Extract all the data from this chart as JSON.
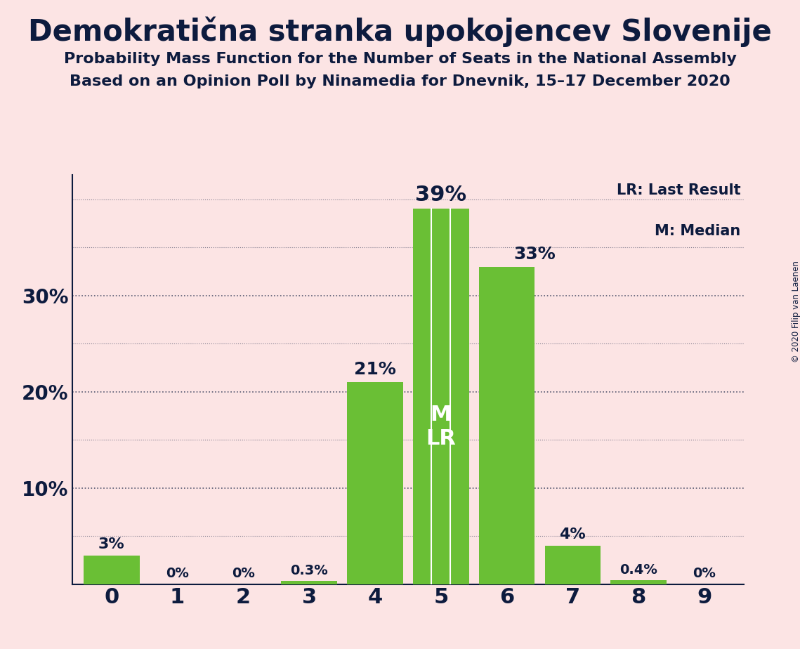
{
  "title": "Demokratična stranka upokojencev Slovenije",
  "subtitle1": "Probability Mass Function for the Number of Seats in the National Assembly",
  "subtitle2": "Based on an Opinion Poll by Ninamedia for Dnevnik, 15–17 December 2020",
  "copyright": "© 2020 Filip van Laenen",
  "categories": [
    0,
    1,
    2,
    3,
    4,
    5,
    6,
    7,
    8,
    9
  ],
  "values": [
    0.03,
    0.0,
    0.0,
    0.003,
    0.21,
    0.39,
    0.33,
    0.04,
    0.004,
    0.0
  ],
  "labels": [
    "3%",
    "0%",
    "0%",
    "0.3%",
    "21%",
    "39%",
    "33%",
    "4%",
    "0.4%",
    "0%"
  ],
  "bar_color": "#6abf35",
  "bg_color": "#fce4e4",
  "text_color": "#0d1b3e",
  "label_color_inside": "#ffffff",
  "median_seat": 5,
  "legend_line1": "LR: Last Result",
  "legend_line2": "M: Median",
  "ml_label": "M\nLR",
  "yticks": [
    0.0,
    0.1,
    0.2,
    0.3
  ],
  "ytick_labels": [
    "",
    "10%",
    "20%",
    "30%"
  ],
  "grid_color": "#0d1b3e",
  "ylim": [
    0,
    0.425
  ]
}
